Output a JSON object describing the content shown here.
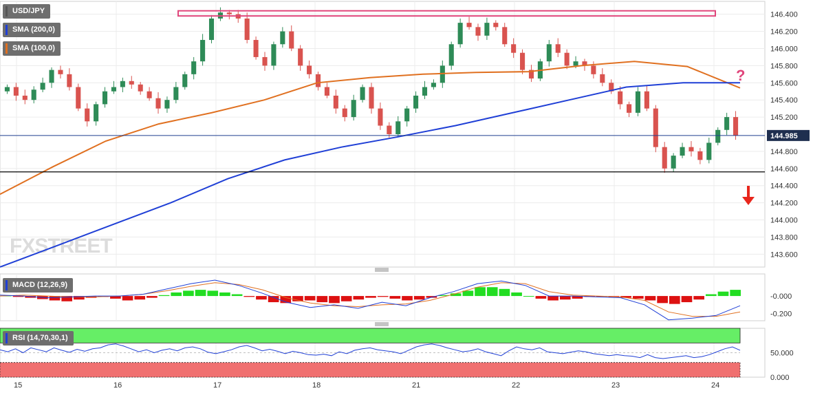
{
  "indicators": {
    "symbol": "USD/JPY",
    "sma200": "SMA (200,0)",
    "sma100": "SMA (100,0)",
    "macd": "MACD (12,26,9)",
    "rsi": "RSI (14,70,30,1)"
  },
  "colors": {
    "sma200": "#1f3fd6",
    "sma100": "#e07020",
    "up": "#2e8b57",
    "down": "#d9534f",
    "resistance_box": "#e0457b",
    "support_line": "#000000",
    "last_price_line": "#1f3f8f",
    "arrow": "#e8261c",
    "question": "#e0457b",
    "macd_pos": "#22dd22",
    "macd_neg": "#dd1111",
    "rsi_overbought": "#66ee66",
    "rsi_oversold": "#f07070"
  },
  "annotations": {
    "question_mark": "?",
    "last_price": "144.985",
    "watermark": "FXSTREET",
    "resistance_zone": [
      146.38,
      146.44
    ],
    "support_level": 144.56
  },
  "chart_data": [
    {
      "type": "candlestick",
      "title": "USD/JPY",
      "x_ticks": [
        "15",
        "16",
        "17",
        "18",
        "21",
        "22",
        "23",
        "24"
      ],
      "y_ticks": [
        "146.400",
        "146.200",
        "146.000",
        "145.800",
        "145.600",
        "145.400",
        "145.200",
        "144.985",
        "144.800",
        "144.600",
        "144.400",
        "144.200",
        "144.000",
        "143.800",
        "143.600"
      ],
      "ylim": [
        143.45,
        146.55
      ],
      "close_path": [
        145.5,
        145.55,
        145.45,
        145.4,
        145.52,
        145.6,
        145.75,
        145.7,
        145.55,
        145.3,
        145.15,
        145.35,
        145.5,
        145.55,
        145.62,
        145.58,
        145.5,
        145.42,
        145.3,
        145.4,
        145.55,
        145.7,
        145.85,
        146.1,
        146.35,
        146.42,
        146.4,
        146.35,
        146.1,
        145.9,
        145.8,
        146.05,
        146.2,
        146.0,
        145.8,
        145.7,
        145.55,
        145.45,
        145.3,
        145.2,
        145.4,
        145.55,
        145.3,
        145.1,
        145.0,
        145.15,
        145.3,
        145.45,
        145.55,
        145.6,
        145.8,
        146.05,
        146.3,
        146.25,
        146.15,
        146.3,
        146.25,
        146.05,
        145.95,
        145.75,
        145.65,
        145.85,
        146.05,
        145.95,
        145.8,
        145.85,
        145.8,
        145.7,
        145.6,
        145.5,
        145.35,
        145.25,
        145.5,
        145.3,
        144.85,
        144.6,
        144.75,
        144.85,
        144.8,
        144.7,
        144.9,
        145.05,
        145.2,
        144.985
      ],
      "sma100": {
        "name": "SMA (100,0)",
        "values": [
          144.3,
          144.62,
          144.92,
          145.12,
          145.25,
          145.4,
          145.6,
          145.66,
          145.7,
          145.72,
          145.73,
          145.8,
          145.85,
          145.79,
          145.54
        ]
      },
      "sma200": {
        "name": "SMA (200,0)",
        "values": [
          143.45,
          143.7,
          143.95,
          144.2,
          144.48,
          144.7,
          144.85,
          144.97,
          145.1,
          145.25,
          145.4,
          145.55,
          145.6,
          145.6
        ]
      }
    },
    {
      "type": "bar+line",
      "title": "MACD (12,26,9)",
      "y_ticks": [
        "-0.000",
        "-0.200"
      ],
      "ylim": [
        -0.28,
        0.25
      ],
      "histogram": [
        0.005,
        -0.01,
        -0.02,
        -0.035,
        -0.05,
        -0.06,
        -0.04,
        -0.02,
        -0.01,
        -0.03,
        -0.05,
        -0.04,
        -0.02,
        0.01,
        0.04,
        0.06,
        0.07,
        0.06,
        0.04,
        0.02,
        -0.01,
        -0.04,
        -0.07,
        -0.08,
        -0.06,
        -0.05,
        -0.07,
        -0.08,
        -0.06,
        -0.04,
        -0.02,
        -0.01,
        -0.03,
        -0.05,
        -0.04,
        -0.02,
        0.01,
        0.03,
        0.06,
        0.1,
        0.1,
        0.08,
        0.04,
        0.0,
        -0.03,
        -0.05,
        -0.04,
        -0.03,
        -0.01,
        -0.005,
        -0.01,
        -0.02,
        -0.03,
        -0.05,
        -0.08,
        -0.09,
        -0.07,
        -0.04,
        0.02,
        0.05,
        0.07
      ],
      "macd_line": [
        0.01,
        0.0,
        -0.02,
        -0.01,
        0.0,
        0.0,
        0.02,
        0.08,
        0.14,
        0.18,
        0.12,
        0.03,
        -0.07,
        -0.13,
        -0.1,
        -0.14,
        -0.07,
        -0.11,
        -0.02,
        0.05,
        0.14,
        0.17,
        0.12,
        0.0,
        0.0,
        -0.01,
        -0.02,
        -0.1,
        -0.27,
        -0.25,
        -0.22,
        -0.11
      ],
      "signal_line": [
        0.0,
        0.01,
        0.0,
        -0.01,
        -0.01,
        0.0,
        0.02,
        0.06,
        0.11,
        0.15,
        0.13,
        0.07,
        -0.02,
        -0.08,
        -0.11,
        -0.12,
        -0.1,
        -0.09,
        -0.05,
        0.02,
        0.1,
        0.15,
        0.14,
        0.05,
        0.01,
        0.0,
        -0.01,
        -0.05,
        -0.18,
        -0.23,
        -0.23,
        -0.18
      ]
    },
    {
      "type": "line",
      "title": "RSI (14,70,30,1)",
      "y_ticks": [
        "50.000",
        "0.000"
      ],
      "ylim": [
        0,
        100
      ],
      "overbought": 70,
      "oversold": 30,
      "values": [
        56,
        52,
        58,
        50,
        60,
        56,
        52,
        60,
        55,
        51,
        57,
        53,
        58,
        60,
        66,
        68,
        64,
        58,
        52,
        56,
        50,
        55,
        58,
        54,
        60,
        62,
        58,
        51,
        48,
        52,
        56,
        62,
        65,
        60,
        54,
        57,
        53,
        48,
        53,
        50,
        46,
        45,
        47,
        44,
        52,
        48,
        55,
        58,
        60,
        56,
        54,
        52,
        48,
        55,
        62,
        66,
        68,
        65,
        60,
        56,
        52,
        54,
        58,
        52,
        48,
        44,
        54,
        62,
        58,
        56,
        60,
        52,
        50,
        48,
        51,
        54,
        52,
        48,
        46,
        44,
        46,
        44,
        43,
        40,
        46,
        40,
        38,
        40,
        42,
        44,
        40,
        42,
        46,
        52,
        58,
        62,
        55
      ]
    }
  ]
}
